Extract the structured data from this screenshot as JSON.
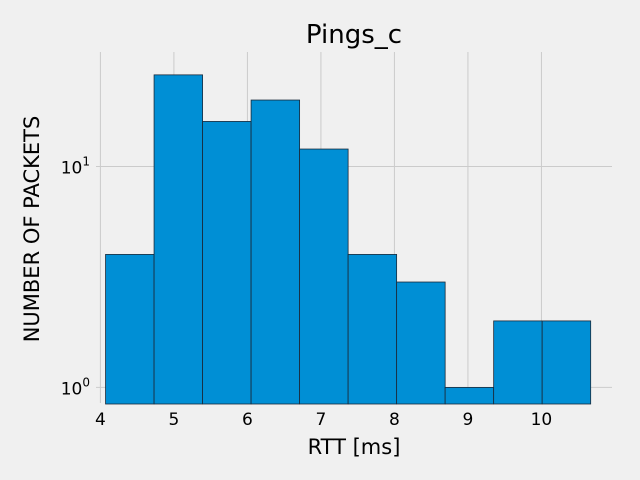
{
  "chart_data": {
    "type": "bar",
    "title": "Pings_c",
    "xlabel": "RTT [ms]",
    "ylabel": "NUMBER OF PACKETS",
    "yscale": "log",
    "grid": true,
    "bar_color": "#008fd5",
    "background": "#f0f0f0",
    "xlim": [
      3.94,
      10.96
    ],
    "ylim": [
      0.85,
      33
    ],
    "x_ticks": [
      4,
      5,
      6,
      7,
      8,
      9,
      10
    ],
    "y_ticks": [
      {
        "value": 1,
        "base": "10",
        "exp": "0"
      },
      {
        "value": 10,
        "base": "10",
        "exp": "1"
      }
    ],
    "bins": [
      {
        "x0": 4.07,
        "x1": 4.73,
        "count": 4
      },
      {
        "x0": 4.73,
        "x1": 5.39,
        "count": 26
      },
      {
        "x0": 5.39,
        "x1": 6.05,
        "count": 16
      },
      {
        "x0": 6.05,
        "x1": 6.71,
        "count": 20
      },
      {
        "x0": 6.71,
        "x1": 7.37,
        "count": 12
      },
      {
        "x0": 7.37,
        "x1": 8.03,
        "count": 4
      },
      {
        "x0": 8.03,
        "x1": 8.69,
        "count": 3
      },
      {
        "x0": 8.69,
        "x1": 9.35,
        "count": 1
      },
      {
        "x0": 9.35,
        "x1": 10.01,
        "count": 2
      },
      {
        "x0": 10.01,
        "x1": 10.67,
        "count": 2
      }
    ]
  }
}
